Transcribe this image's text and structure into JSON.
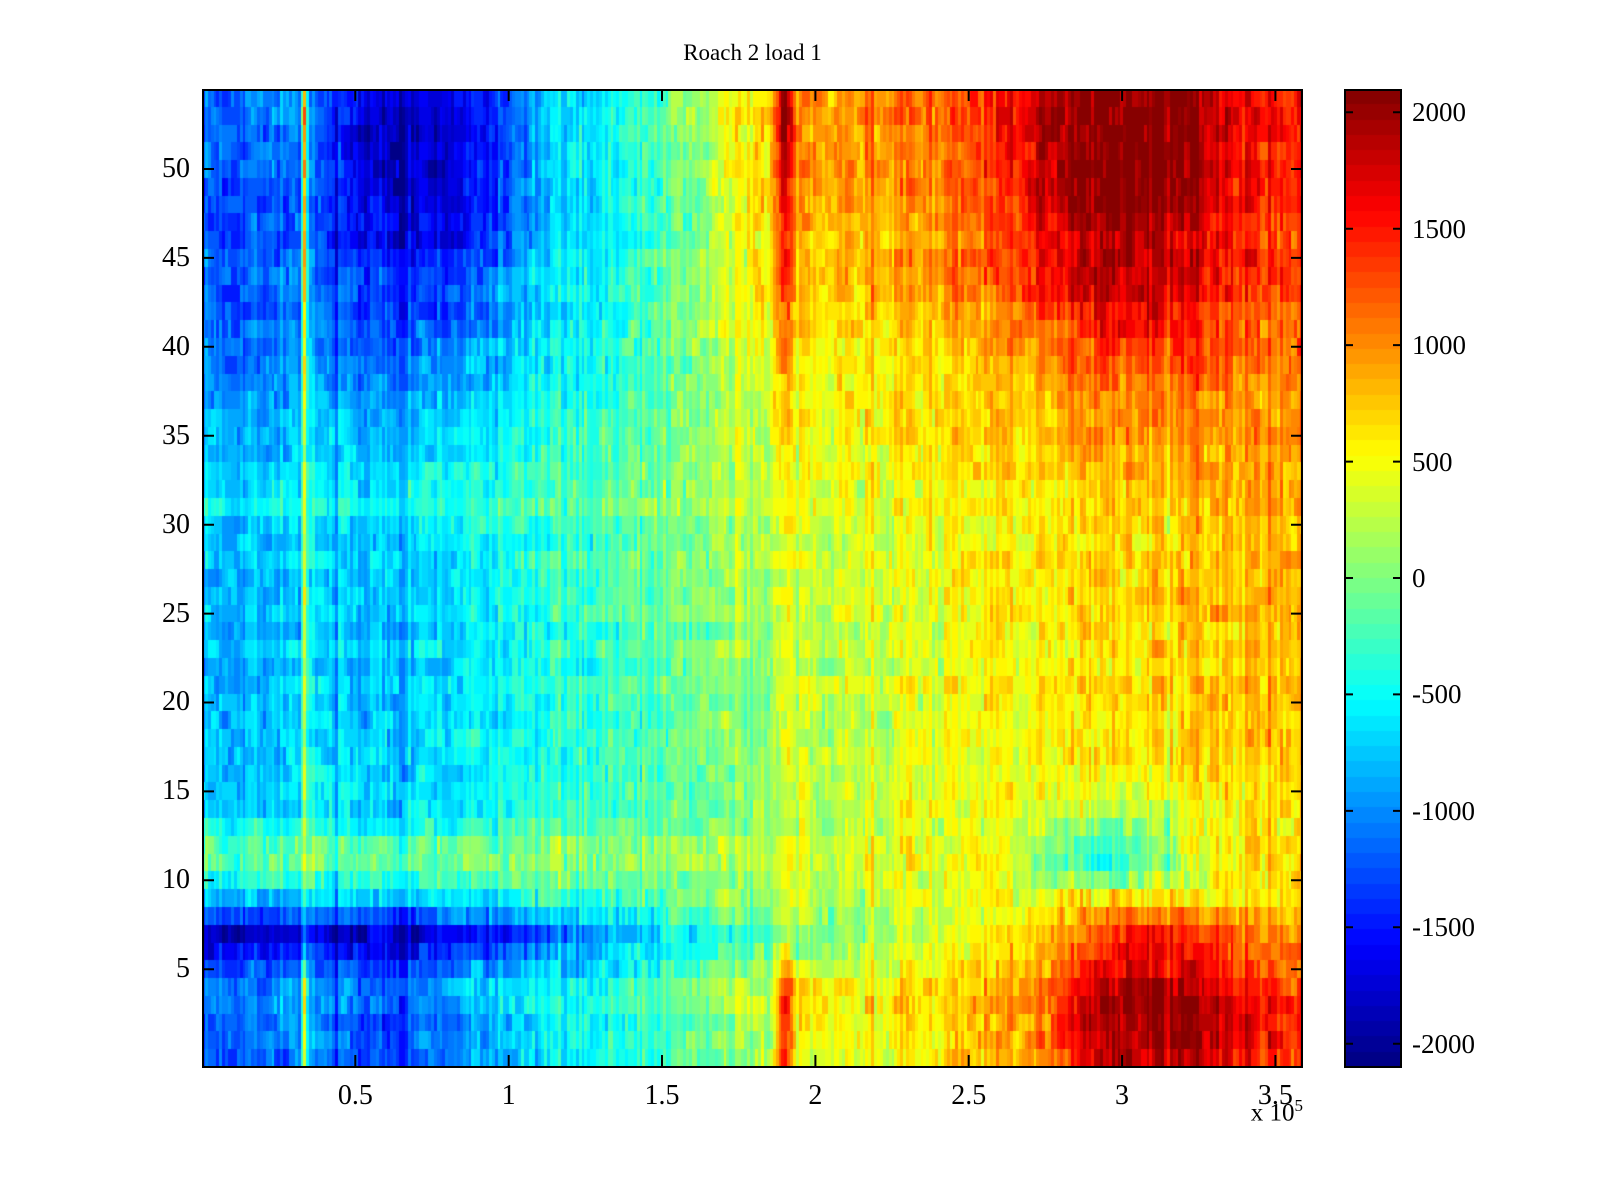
{
  "chart_data": {
    "type": "heatmap",
    "title": "Roach 2 load 1",
    "x_axis": {
      "range_1e5": [
        0,
        3.59
      ],
      "ticks_1e5": [
        0.5,
        1,
        1.5,
        2,
        2.5,
        3,
        3.5
      ],
      "tick_labels": [
        "0.5",
        "1",
        "1.5",
        "2",
        "2.5",
        "3",
        "3.5"
      ],
      "exponent_base": "x 10",
      "exponent_power": "5"
    },
    "y_axis": {
      "range": [
        -0.5,
        54.5
      ],
      "ticks": [
        5,
        10,
        15,
        20,
        25,
        30,
        35,
        40,
        45,
        50
      ],
      "tick_labels": [
        "5",
        "10",
        "15",
        "20",
        "25",
        "30",
        "35",
        "40",
        "45",
        "50"
      ]
    },
    "colorbar": {
      "colormap": "jet",
      "levels": 64,
      "clim": [
        -2100,
        2100
      ],
      "ticks": [
        2000,
        1500,
        1000,
        500,
        0,
        -500,
        -1000,
        -1500,
        -2000
      ],
      "tick_labels": [
        "2000",
        "1500",
        "1000",
        "500",
        "0",
        "-500",
        "-1000",
        "-1500",
        "-2000"
      ]
    },
    "grid": {
      "columns": 380,
      "rows": 55,
      "x_1e5": [
        0,
        0.2,
        0.32,
        0.335,
        0.35,
        0.55,
        0.75,
        0.95,
        1.1,
        1.3,
        1.55,
        1.8,
        1.86,
        1.9,
        1.94,
        2.15,
        2.4,
        2.6,
        2.75,
        2.95,
        3.15,
        3.3,
        3.45,
        3.6
      ],
      "y": [
        0,
        2,
        4.5,
        7,
        9,
        10.5,
        12,
        14,
        17,
        21,
        25,
        29,
        31,
        34,
        37,
        40,
        43,
        46,
        49,
        52,
        54
      ],
      "values": [
        [
          -1150,
          -1050,
          -1000,
          350,
          -1000,
          -1250,
          -1100,
          -850,
          -600,
          -450,
          -200,
          150,
          300,
          1500,
          500,
          500,
          600,
          850,
          1100,
          1900,
          2000,
          1800,
          1500,
          1400
        ],
        [
          -1200,
          -1000,
          -950,
          400,
          -950,
          -1300,
          -1200,
          -800,
          -600,
          -450,
          -200,
          200,
          350,
          1600,
          550,
          550,
          650,
          900,
          1200,
          2000,
          2100,
          1900,
          1550,
          1450
        ],
        [
          -1100,
          -950,
          -900,
          350,
          -900,
          -1150,
          -1000,
          -700,
          -550,
          -400,
          -150,
          250,
          350,
          1400,
          500,
          500,
          600,
          850,
          1100,
          1700,
          1900,
          1600,
          1300,
          1250
        ],
        [
          -1900,
          -1850,
          -1800,
          -1500,
          -1800,
          -1900,
          -1750,
          -1500,
          -1300,
          -900,
          -600,
          -250,
          -150,
          100,
          -100,
          100,
          300,
          550,
          800,
          1300,
          1500,
          1300,
          1000,
          900
        ],
        [
          -800,
          -700,
          -650,
          -300,
          -650,
          -700,
          -650,
          -500,
          -400,
          -300,
          -100,
          100,
          150,
          300,
          250,
          300,
          400,
          500,
          550,
          650,
          700,
          700,
          650,
          700
        ],
        [
          -150,
          -100,
          -50,
          300,
          -50,
          -100,
          -50,
          0,
          0,
          50,
          100,
          250,
          300,
          450,
          350,
          400,
          450,
          500,
          0,
          -400,
          100,
          500,
          650,
          700
        ],
        [
          -200,
          -150,
          -100,
          250,
          -100,
          -150,
          -100,
          -50,
          0,
          50,
          100,
          250,
          300,
          450,
          350,
          400,
          450,
          500,
          100,
          -350,
          150,
          550,
          650,
          700
        ],
        [
          -750,
          -700,
          -650,
          100,
          -650,
          -700,
          -650,
          -500,
          -400,
          -300,
          -150,
          50,
          100,
          300,
          200,
          300,
          400,
          450,
          450,
          200,
          400,
          550,
          650,
          700
        ],
        [
          -800,
          -750,
          -700,
          100,
          -700,
          -750,
          -700,
          -550,
          -450,
          -350,
          -150,
          50,
          100,
          350,
          250,
          300,
          400,
          500,
          550,
          600,
          650,
          700,
          750,
          800
        ],
        [
          -850,
          -800,
          -750,
          150,
          -750,
          -800,
          -700,
          -550,
          -450,
          -350,
          -150,
          100,
          150,
          350,
          250,
          300,
          400,
          500,
          600,
          650,
          700,
          750,
          800,
          850
        ],
        [
          -850,
          -800,
          -750,
          200,
          -750,
          -800,
          -700,
          -550,
          -450,
          -300,
          -100,
          150,
          200,
          400,
          300,
          350,
          450,
          550,
          600,
          650,
          700,
          750,
          800,
          850
        ],
        [
          -800,
          -750,
          -700,
          250,
          -700,
          -750,
          -650,
          -500,
          -400,
          -250,
          -50,
          200,
          250,
          450,
          350,
          400,
          500,
          550,
          650,
          700,
          750,
          800,
          850,
          900
        ],
        [
          -550,
          -500,
          -450,
          300,
          -450,
          -500,
          -400,
          -300,
          -200,
          -100,
          100,
          300,
          350,
          500,
          400,
          450,
          500,
          600,
          650,
          700,
          750,
          800,
          850,
          900
        ],
        [
          -850,
          -800,
          -750,
          250,
          -750,
          -800,
          -700,
          -550,
          -450,
          -300,
          -50,
          250,
          300,
          600,
          400,
          450,
          550,
          650,
          700,
          800,
          850,
          900,
          900,
          950
        ],
        [
          -950,
          -900,
          -850,
          300,
          -850,
          -950,
          -850,
          -650,
          -500,
          -350,
          -50,
          300,
          400,
          800,
          500,
          550,
          650,
          750,
          850,
          950,
          1000,
          1000,
          950,
          1050
        ],
        [
          -1100,
          -1050,
          -1000,
          450,
          -1000,
          -1150,
          -1100,
          -850,
          -600,
          -400,
          0,
          400,
          500,
          1200,
          600,
          650,
          750,
          900,
          1100,
          1400,
          1450,
          1300,
          1100,
          1200
        ],
        [
          -1200,
          -1150,
          -1100,
          550,
          -1150,
          -1350,
          -1400,
          -1100,
          -700,
          -500,
          -100,
          500,
          600,
          1400,
          700,
          750,
          900,
          1100,
          1500,
          1800,
          1700,
          1500,
          1250,
          1350
        ],
        [
          -1250,
          -1200,
          -1150,
          650,
          -1250,
          -1550,
          -1650,
          -1300,
          -800,
          -550,
          -150,
          550,
          700,
          1500,
          800,
          850,
          1000,
          1200,
          1700,
          2000,
          1900,
          1600,
          1350,
          1450
        ],
        [
          -1300,
          -1200,
          -1100,
          750,
          -1300,
          -1750,
          -1850,
          -1450,
          -900,
          -600,
          -150,
          600,
          750,
          1700,
          850,
          900,
          1050,
          1300,
          1800,
          2100,
          2050,
          1700,
          1400,
          1500
        ],
        [
          -1200,
          -1100,
          -1000,
          850,
          -1250,
          -1800,
          -1900,
          -1500,
          -900,
          -600,
          -100,
          650,
          800,
          2000,
          950,
          950,
          1100,
          1400,
          1900,
          2100,
          2100,
          1800,
          1500,
          1550
        ],
        [
          -1100,
          -1000,
          -900,
          900,
          -1150,
          -1600,
          -1750,
          -1350,
          -850,
          -550,
          -50,
          700,
          900,
          2050,
          1000,
          1000,
          1150,
          1450,
          1900,
          2100,
          2100,
          1850,
          1550,
          1600
        ]
      ]
    },
    "noise": {
      "seed": 7,
      "column_amplitude": 170,
      "cell_amplitude": 300,
      "row_offset_amplitude": 70,
      "spike_fraction": 0.03,
      "spike_gain": 2.2,
      "cell_repeat_probability": 0.45
    }
  }
}
